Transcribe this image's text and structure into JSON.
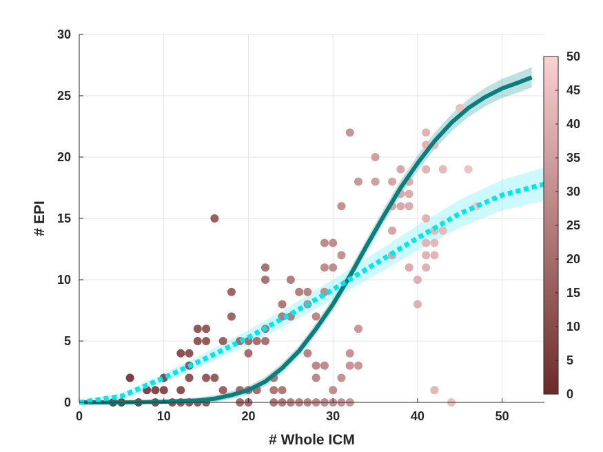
{
  "chart_data": {
    "type": "scatter",
    "xlabel": "# Whole ICM",
    "ylabel": "# EPI",
    "xlim": [
      0,
      55
    ],
    "ylim": [
      0,
      30
    ],
    "xticks": [
      "0",
      "10",
      "20",
      "30",
      "40",
      "50"
    ],
    "yticks": [
      "0",
      "5",
      "10",
      "15",
      "20",
      "25",
      "30"
    ],
    "grid": true,
    "colorbar": {
      "ticks": [
        "0",
        "5",
        "10",
        "15",
        "20",
        "25",
        "30",
        "35",
        "40",
        "45",
        "50"
      ],
      "range": [
        0,
        50
      ],
      "color_low": "#6b2a2a",
      "color_high": "#fbd1d1"
    },
    "points": [
      [
        4,
        0
      ],
      [
        5,
        0
      ],
      [
        6,
        2
      ],
      [
        7,
        0
      ],
      [
        8,
        1
      ],
      [
        9,
        1
      ],
      [
        9,
        0
      ],
      [
        10,
        1
      ],
      [
        10,
        2
      ],
      [
        11,
        0
      ],
      [
        12,
        0
      ],
      [
        12,
        1
      ],
      [
        12,
        4
      ],
      [
        13,
        4
      ],
      [
        13,
        3
      ],
      [
        13,
        2
      ],
      [
        13,
        0
      ],
      [
        14,
        6
      ],
      [
        14,
        5
      ],
      [
        14,
        0
      ],
      [
        15,
        6
      ],
      [
        15,
        5
      ],
      [
        15,
        2
      ],
      [
        15,
        0
      ],
      [
        16,
        15
      ],
      [
        16,
        2
      ],
      [
        17,
        1
      ],
      [
        17,
        5
      ],
      [
        18,
        9
      ],
      [
        18,
        7
      ],
      [
        19,
        5
      ],
      [
        19,
        1
      ],
      [
        19,
        0
      ],
      [
        20,
        5
      ],
      [
        20,
        4
      ],
      [
        20,
        1
      ],
      [
        20,
        0
      ],
      [
        21,
        5
      ],
      [
        21,
        1
      ],
      [
        22,
        11
      ],
      [
        22,
        10
      ],
      [
        22,
        6
      ],
      [
        22,
        5
      ],
      [
        23,
        2
      ],
      [
        23,
        1
      ],
      [
        23,
        0
      ],
      [
        24,
        8
      ],
      [
        24,
        7
      ],
      [
        24,
        1
      ],
      [
        24,
        0
      ],
      [
        25,
        10
      ],
      [
        25,
        7
      ],
      [
        25,
        0
      ],
      [
        26,
        9
      ],
      [
        26,
        0
      ],
      [
        27,
        9
      ],
      [
        27,
        8
      ],
      [
        27,
        4
      ],
      [
        27,
        0
      ],
      [
        28,
        7
      ],
      [
        28,
        3
      ],
      [
        28,
        2
      ],
      [
        28,
        0
      ],
      [
        29,
        13
      ],
      [
        29,
        11
      ],
      [
        29,
        9
      ],
      [
        29,
        3
      ],
      [
        29,
        0
      ],
      [
        30,
        13
      ],
      [
        30,
        11
      ],
      [
        30,
        1
      ],
      [
        30,
        0
      ],
      [
        31,
        12
      ],
      [
        31,
        16
      ],
      [
        31,
        2
      ],
      [
        31,
        0
      ],
      [
        32,
        22
      ],
      [
        32,
        4
      ],
      [
        32,
        3
      ],
      [
        32,
        0
      ],
      [
        33,
        18
      ],
      [
        33,
        6
      ],
      [
        33,
        3
      ],
      [
        35,
        20
      ],
      [
        35,
        18
      ],
      [
        37,
        18
      ],
      [
        37,
        16
      ],
      [
        37,
        14
      ],
      [
        37,
        12
      ],
      [
        38,
        19
      ],
      [
        38,
        17
      ],
      [
        38,
        16
      ],
      [
        39,
        18
      ],
      [
        39,
        17
      ],
      [
        39,
        16
      ],
      [
        39,
        11
      ],
      [
        40,
        10
      ],
      [
        40,
        8
      ],
      [
        41,
        22
      ],
      [
        41,
        21
      ],
      [
        41,
        19
      ],
      [
        41,
        15
      ],
      [
        41,
        13
      ],
      [
        41,
        12
      ],
      [
        41,
        11
      ],
      [
        42,
        21
      ],
      [
        42,
        14
      ],
      [
        42,
        13
      ],
      [
        42,
        12
      ],
      [
        42,
        1
      ],
      [
        43,
        19
      ],
      [
        43,
        14
      ],
      [
        44,
        0
      ],
      [
        45,
        24
      ],
      [
        46,
        19
      ],
      [
        47,
        16
      ]
    ],
    "point_colors": "by_x",
    "series": [
      {
        "style": "solid",
        "color": "#0b7d7d",
        "band_color": "#3fa8a8",
        "values": [
          [
            0,
            0
          ],
          [
            5,
            0.01
          ],
          [
            10,
            0.05
          ],
          [
            14,
            0.15
          ],
          [
            16,
            0.3
          ],
          [
            18,
            0.6
          ],
          [
            20,
            1.0
          ],
          [
            22,
            1.7
          ],
          [
            24,
            2.8
          ],
          [
            26,
            4.2
          ],
          [
            28,
            6.0
          ],
          [
            30,
            8.0
          ],
          [
            32,
            10.3
          ],
          [
            34,
            12.8
          ],
          [
            36,
            15.2
          ],
          [
            38,
            17.5
          ],
          [
            40,
            19.5
          ],
          [
            42,
            21.3
          ],
          [
            44,
            22.8
          ],
          [
            46,
            24.0
          ],
          [
            48,
            24.9
          ],
          [
            50,
            25.6
          ],
          [
            52,
            26.1
          ],
          [
            53.5,
            26.5
          ]
        ]
      },
      {
        "style": "dotted",
        "color": "#00e5ee",
        "band_color": "#7ff3f8",
        "values": [
          [
            0,
            0
          ],
          [
            5,
            0.5
          ],
          [
            10,
            2.0
          ],
          [
            15,
            3.6
          ],
          [
            20,
            5.3
          ],
          [
            25,
            7.2
          ],
          [
            30,
            9.2
          ],
          [
            35,
            11.3
          ],
          [
            40,
            13.4
          ],
          [
            45,
            15.4
          ],
          [
            50,
            16.9
          ],
          [
            55,
            17.8
          ]
        ]
      }
    ]
  }
}
